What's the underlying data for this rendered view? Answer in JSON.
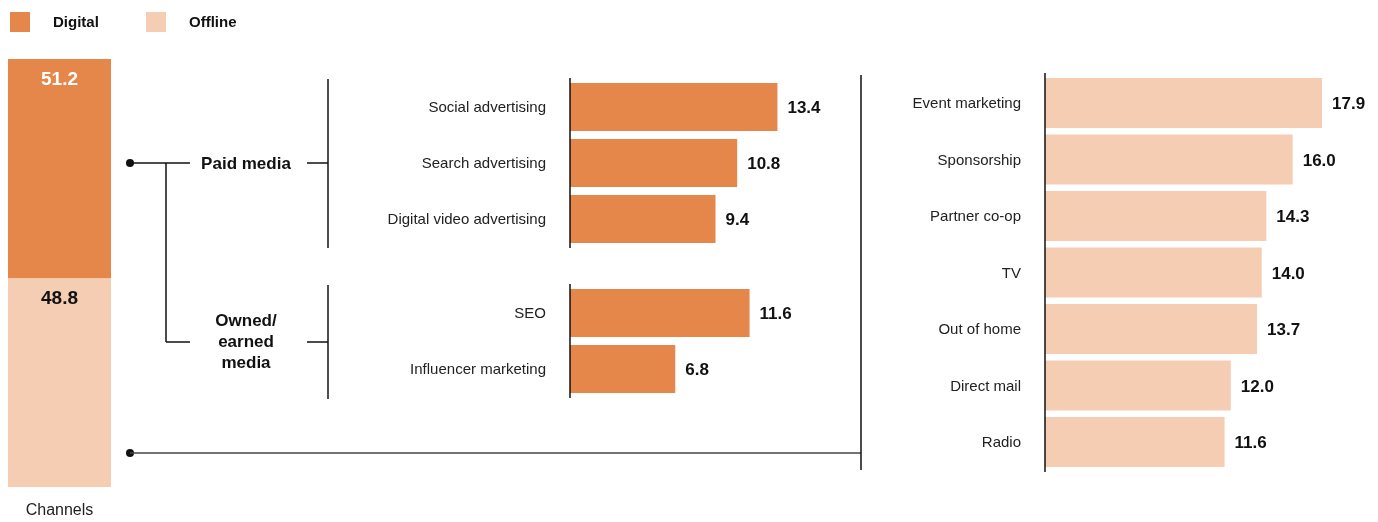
{
  "chart_data": [
    {
      "type": "bar",
      "stacked": true,
      "categories": [
        "Channels"
      ],
      "legend": "top",
      "data_labels": true,
      "series": [
        {
          "name": "Offline",
          "color": "#f5cdb2",
          "values": [
            48.8
          ]
        },
        {
          "name": "Digital",
          "color": "#e5874a",
          "values": [
            51.2
          ]
        }
      ]
    },
    {
      "type": "bar",
      "orientation": "horizontal",
      "annotations": [
        "Paid media",
        "Owned/ earned media"
      ],
      "categories": [
        "Social advertising",
        "Search advertising",
        "Digital video advertising",
        "SEO",
        "Influencer marketing"
      ],
      "values": [
        13.4,
        10.8,
        9.4,
        11.6,
        6.8
      ],
      "color": "#e5874a",
      "data_labels": true
    },
    {
      "type": "bar",
      "orientation": "horizontal",
      "categories": [
        "Event marketing",
        "Sponsorship",
        "Partner co-op",
        "TV",
        "Out of home",
        "Direct mail",
        "Radio"
      ],
      "values": [
        17.9,
        16.0,
        14.3,
        14.0,
        13.7,
        12.0,
        11.6
      ],
      "value_labels": [
        "17.9",
        "16.0",
        "14.3",
        "14.0",
        "13.7",
        "12.0",
        "11.6"
      ],
      "color": "#f5cdb2"
    }
  ]
}
